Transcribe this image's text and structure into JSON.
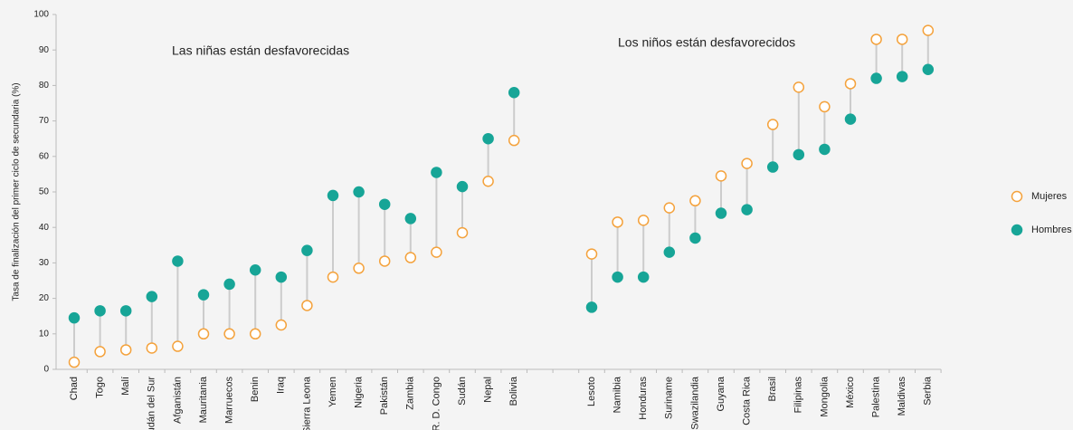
{
  "chart_data": {
    "type": "dumbbell",
    "y_label": "Tasa de finalización del primer ciclo de secundaria (%)",
    "annotations": [
      "Las niñas están desfavorecidas",
      "Los niños están desfavorecidos"
    ],
    "categories": [
      "Chad",
      "Togo",
      "Malí",
      "Sudán del Sur",
      "Afganistán",
      "Mauritania",
      "Marruecos",
      "Benin",
      "Iraq",
      "Sierra Leona",
      "Yemen",
      "Nigeria",
      "Pakistán",
      "Zambia",
      "R. D. Congo",
      "Sudán",
      "Nepal",
      "Bolivia",
      null,
      null,
      "Lesoto",
      "Namibia",
      "Honduras",
      "Suriname",
      "Swazilandia",
      "Guyana",
      "Costa Rica",
      "Brasil",
      "Filipinas",
      "Mongolia",
      "México",
      "Palestina",
      "Maldivas",
      "Serbia"
    ],
    "series": [
      {
        "name": "Mujeres",
        "color": "#f4a23c",
        "marker": "hollow",
        "values": [
          2,
          5,
          5.5,
          6,
          6.5,
          10,
          10,
          10,
          12.5,
          18,
          26,
          28.5,
          30.5,
          31.5,
          33,
          38.5,
          53,
          64.5,
          null,
          null,
          32.5,
          41.5,
          42,
          45.5,
          47.5,
          54.5,
          58,
          69,
          79.5,
          74,
          80.5,
          93,
          93,
          95.5
        ]
      },
      {
        "name": "Hombres",
        "color": "#17a597",
        "marker": "filled",
        "values": [
          14.5,
          16.5,
          16.5,
          20.5,
          30.5,
          21,
          24,
          28,
          26,
          33.5,
          49,
          50,
          46.5,
          42.5,
          55.5,
          51.5,
          65,
          78,
          null,
          null,
          17.5,
          26,
          26,
          33,
          37,
          44,
          45,
          57,
          60.5,
          62,
          70.5,
          82,
          82.5,
          84.5
        ]
      }
    ],
    "ylim": [
      0,
      100
    ],
    "yticks": [
      0,
      10,
      20,
      30,
      40,
      50,
      60,
      70,
      80,
      90,
      100
    ],
    "legend": "right"
  }
}
